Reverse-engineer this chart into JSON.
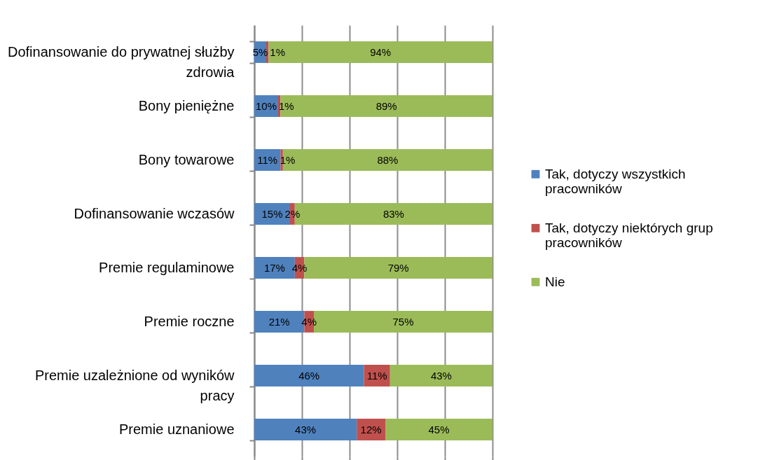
{
  "chart_data": {
    "type": "bar",
    "orientation": "horizontal",
    "stacked": true,
    "categories": [
      "Dofinansowanie do prywatnej służby zdrowia",
      "Bony pieniężne",
      "Bony towarowe",
      "Dofinansowanie wczasów",
      "Premie regulaminowe",
      "Premie roczne",
      "Premie uzależnione od wyników pracy",
      "Premie uznaniowe"
    ],
    "series": [
      {
        "name": "Tak, dotyczy wszystkich pracowników",
        "color": "#4f81bd",
        "values": [
          5,
          10,
          11,
          15,
          17,
          21,
          46,
          43
        ],
        "value_labels": [
          "5%",
          "10%",
          "11%",
          "15%",
          "17%",
          "21%",
          "46%",
          "43%"
        ]
      },
      {
        "name": "Tak, dotyczy niektórych grup pracowników",
        "color": "#c0504d",
        "values": [
          1,
          1,
          1,
          2,
          4,
          4,
          11,
          12
        ],
        "value_labels": [
          "1%",
          "1%",
          "1%",
          "2%",
          "4%",
          "4%",
          "11%",
          "12%"
        ]
      },
      {
        "name": "Nie",
        "color": "#9bbb59",
        "values": [
          94,
          89,
          88,
          83,
          79,
          75,
          43,
          45
        ],
        "value_labels": [
          "94%",
          "89%",
          "88%",
          "83%",
          "79%",
          "75%",
          "43%",
          "45%"
        ]
      }
    ],
    "xlim": [
      0,
      100
    ],
    "xticks": [
      {
        "value": 0,
        "label": null
      },
      {
        "value": 20,
        "label": null
      },
      {
        "value": 40,
        "label": null
      },
      {
        "value": 60,
        "label": null
      },
      {
        "value": 80,
        "label": null
      },
      {
        "value": 100,
        "label": null
      }
    ],
    "grid": "x",
    "tick_labels": "y",
    "legend": "right"
  }
}
